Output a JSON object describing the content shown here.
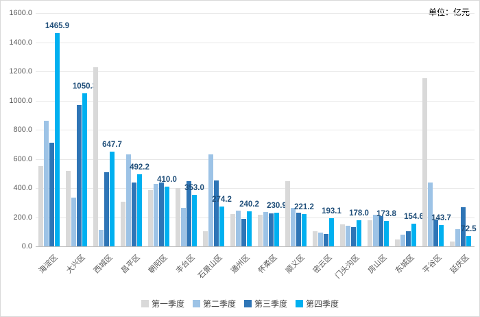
{
  "chart_data": {
    "type": "bar",
    "title": "",
    "unit_label": "单位：亿元",
    "categories": [
      "海淀区",
      "大兴区",
      "西城区",
      "昌平区",
      "朝阳区",
      "丰台区",
      "石景山区",
      "通州区",
      "怀柔区",
      "顺义区",
      "密云区",
      "门头沟区",
      "房山区",
      "东城区",
      "平谷区",
      "延庆区"
    ],
    "series": [
      {
        "name": "第一季度",
        "color": "#d9d9d9",
        "values": [
          550,
          520,
          1230,
          305,
          385,
          400,
          105,
          220,
          215,
          445,
          105,
          150,
          180,
          45,
          1155,
          35
        ]
      },
      {
        "name": "第二季度",
        "color": "#9dc3e6",
        "values": [
          860,
          335,
          115,
          630,
          430,
          265,
          630,
          245,
          235,
          265,
          95,
          140,
          215,
          80,
          440,
          120
        ]
      },
      {
        "name": "第三季度",
        "color": "#2e75b6",
        "values": [
          710,
          970,
          510,
          440,
          440,
          445,
          450,
          190,
          225,
          230,
          85,
          130,
          205,
          105,
          185,
          270
        ]
      },
      {
        "name": "第四季度",
        "color": "#00b0f0",
        "values": [
          1465.9,
          1050.3,
          647.7,
          492.2,
          410.0,
          353.0,
          274.2,
          240.2,
          230.9,
          221.2,
          193.1,
          178.0,
          173.8,
          154.6,
          143.7,
          72.5
        ],
        "data_labels": true
      }
    ],
    "y_ticks": [
      "0.0",
      "200.0",
      "400.0",
      "600.0",
      "800.0",
      "1000.0",
      "1200.0",
      "1400.0",
      "1600.0"
    ],
    "ylim": [
      0,
      1600
    ],
    "grid": true,
    "legend_position": "bottom",
    "data_label_color": "#1f4e79",
    "axis_text_color": "#595959"
  }
}
